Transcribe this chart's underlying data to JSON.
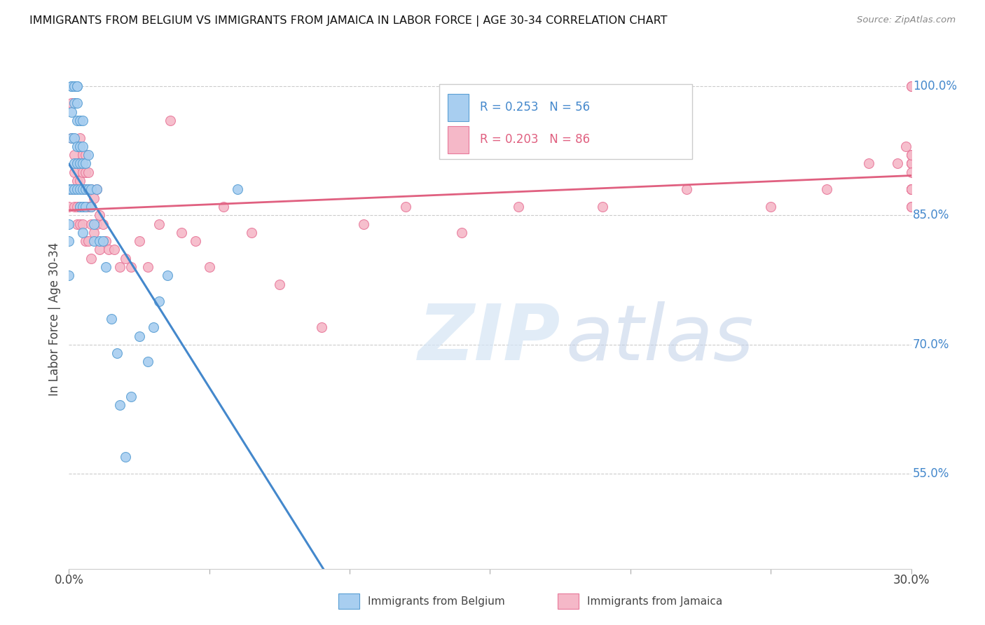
{
  "title": "IMMIGRANTS FROM BELGIUM VS IMMIGRANTS FROM JAMAICA IN LABOR FORCE | AGE 30-34 CORRELATION CHART",
  "source": "Source: ZipAtlas.com",
  "ylabel": "In Labor Force | Age 30-34",
  "yticks_labels": [
    "100.0%",
    "85.0%",
    "70.0%",
    "55.0%"
  ],
  "ytick_vals": [
    1.0,
    0.85,
    0.7,
    0.55
  ],
  "xlim": [
    0.0,
    0.3
  ],
  "ylim": [
    0.44,
    1.02
  ],
  "legend_belgium_r": "R = 0.253",
  "legend_belgium_n": "N = 56",
  "legend_jamaica_r": "R = 0.203",
  "legend_jamaica_n": "N = 86",
  "belgium_color": "#a8cef0",
  "jamaica_color": "#f5b8c8",
  "belgium_edge_color": "#5a9fd4",
  "jamaica_edge_color": "#e8789a",
  "belgium_line_color": "#4488cc",
  "jamaica_line_color": "#e06080",
  "watermark_zip_color": "#d0dff5",
  "watermark_atlas_color": "#c8d8f0",
  "background_color": "#ffffff",
  "belgium_x": [
    0.0,
    0.0,
    0.0,
    0.0,
    0.001,
    0.001,
    0.001,
    0.001,
    0.001,
    0.002,
    0.002,
    0.002,
    0.002,
    0.002,
    0.003,
    0.003,
    0.003,
    0.003,
    0.003,
    0.003,
    0.003,
    0.004,
    0.004,
    0.004,
    0.004,
    0.004,
    0.005,
    0.005,
    0.005,
    0.005,
    0.005,
    0.005,
    0.006,
    0.006,
    0.006,
    0.007,
    0.007,
    0.008,
    0.008,
    0.009,
    0.009,
    0.01,
    0.011,
    0.012,
    0.013,
    0.015,
    0.017,
    0.018,
    0.02,
    0.022,
    0.025,
    0.028,
    0.03,
    0.032,
    0.035,
    0.06
  ],
  "belgium_y": [
    0.88,
    0.84,
    0.82,
    0.78,
    1.0,
    1.0,
    0.97,
    0.94,
    0.88,
    1.0,
    0.98,
    0.94,
    0.91,
    0.88,
    1.0,
    1.0,
    0.98,
    0.96,
    0.93,
    0.91,
    0.88,
    0.96,
    0.93,
    0.91,
    0.88,
    0.86,
    0.96,
    0.93,
    0.91,
    0.88,
    0.86,
    0.83,
    0.91,
    0.88,
    0.86,
    0.92,
    0.88,
    0.88,
    0.86,
    0.84,
    0.82,
    0.88,
    0.82,
    0.82,
    0.79,
    0.73,
    0.69,
    0.63,
    0.57,
    0.64,
    0.71,
    0.68,
    0.72,
    0.75,
    0.78,
    0.88
  ],
  "jamaica_x": [
    0.0,
    0.0,
    0.001,
    0.001,
    0.001,
    0.002,
    0.002,
    0.002,
    0.002,
    0.003,
    0.003,
    0.003,
    0.003,
    0.004,
    0.004,
    0.004,
    0.004,
    0.004,
    0.005,
    0.005,
    0.005,
    0.005,
    0.005,
    0.006,
    0.006,
    0.006,
    0.006,
    0.006,
    0.007,
    0.007,
    0.007,
    0.007,
    0.008,
    0.008,
    0.008,
    0.008,
    0.009,
    0.009,
    0.01,
    0.01,
    0.011,
    0.011,
    0.012,
    0.013,
    0.014,
    0.016,
    0.018,
    0.02,
    0.022,
    0.025,
    0.028,
    0.032,
    0.036,
    0.04,
    0.045,
    0.05,
    0.055,
    0.065,
    0.075,
    0.09,
    0.105,
    0.12,
    0.14,
    0.16,
    0.19,
    0.22,
    0.25,
    0.27,
    0.285,
    0.295,
    0.298,
    0.3,
    0.3,
    0.3,
    0.3,
    0.3,
    0.3,
    0.3,
    0.3,
    0.3,
    0.3,
    0.3,
    0.3,
    0.3,
    0.3,
    0.3
  ],
  "jamaica_y": [
    0.88,
    0.86,
    0.98,
    0.94,
    0.88,
    0.92,
    0.9,
    0.88,
    0.86,
    0.91,
    0.89,
    0.86,
    0.84,
    0.94,
    0.91,
    0.89,
    0.86,
    0.84,
    0.92,
    0.9,
    0.88,
    0.86,
    0.84,
    0.92,
    0.9,
    0.88,
    0.86,
    0.82,
    0.9,
    0.88,
    0.86,
    0.82,
    0.88,
    0.86,
    0.84,
    0.8,
    0.87,
    0.83,
    0.88,
    0.84,
    0.85,
    0.81,
    0.84,
    0.82,
    0.81,
    0.81,
    0.79,
    0.8,
    0.79,
    0.82,
    0.79,
    0.84,
    0.96,
    0.83,
    0.82,
    0.79,
    0.86,
    0.83,
    0.77,
    0.72,
    0.84,
    0.86,
    0.83,
    0.86,
    0.86,
    0.88,
    0.86,
    0.88,
    0.91,
    0.91,
    0.93,
    1.0,
    1.0,
    0.91,
    0.91,
    0.88,
    0.88,
    0.91,
    0.88,
    0.86,
    0.92,
    0.88,
    0.9,
    0.88,
    0.86,
    0.92
  ]
}
